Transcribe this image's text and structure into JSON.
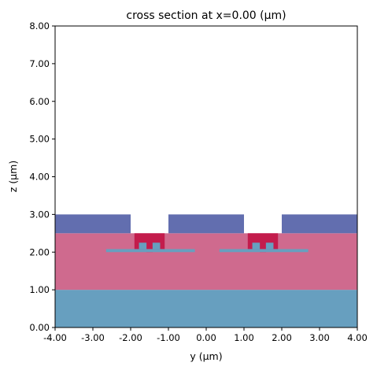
{
  "chart_data": {
    "type": "cross-section",
    "title": "cross section at x=0.00 (µm)",
    "xlabel": "y (µm)",
    "ylabel": "z (µm)",
    "xlim": [
      -4.0,
      4.0
    ],
    "ylim": [
      0.0,
      8.0
    ],
    "xticks": [
      -4.0,
      -3.0,
      -2.0,
      -1.0,
      0.0,
      1.0,
      2.0,
      3.0,
      4.0
    ],
    "xtick_labels": [
      "-4.00",
      "-3.00",
      "-2.00",
      "-1.00",
      "0.00",
      "1.00",
      "2.00",
      "3.00",
      "4.00"
    ],
    "yticks": [
      0.0,
      1.0,
      2.0,
      3.0,
      4.0,
      5.0,
      6.0,
      7.0,
      8.0
    ],
    "ytick_labels": [
      "0.00",
      "1.00",
      "2.00",
      "3.00",
      "4.00",
      "5.00",
      "6.00",
      "7.00",
      "8.00"
    ],
    "grid": false,
    "colors": {
      "substrate": "#679fbf",
      "cladding": "#cf6a8e",
      "top_layer": "#626eaf",
      "rib": "#c31c4c",
      "waveguide": "#679fbf"
    },
    "regions": [
      {
        "name": "substrate",
        "y": [
          -4.0,
          4.0
        ],
        "z": [
          0.0,
          1.0
        ],
        "color": "#679fbf"
      },
      {
        "name": "cladding",
        "y": [
          -4.0,
          4.0
        ],
        "z": [
          1.0,
          2.5
        ],
        "color": "#cf6a8e"
      },
      {
        "name": "top-layer-left",
        "y": [
          -4.0,
          -2.0
        ],
        "z": [
          2.5,
          3.0
        ],
        "color": "#626eaf"
      },
      {
        "name": "top-layer-middle",
        "y": [
          -1.0,
          1.0
        ],
        "z": [
          2.5,
          3.0
        ],
        "color": "#626eaf"
      },
      {
        "name": "top-layer-right",
        "y": [
          2.0,
          4.0
        ],
        "z": [
          2.5,
          3.0
        ],
        "color": "#626eaf"
      },
      {
        "name": "rib-left",
        "y": [
          -1.9,
          -1.1
        ],
        "z": [
          2.08,
          2.5
        ],
        "color": "#c31c4c"
      },
      {
        "name": "rib-left-stem",
        "y": [
          -1.58,
          -1.42
        ],
        "z": [
          2.0,
          2.08
        ],
        "color": "#c31c4c"
      },
      {
        "name": "rib-right",
        "y": [
          1.1,
          1.9
        ],
        "z": [
          2.08,
          2.5
        ],
        "color": "#c31c4c"
      },
      {
        "name": "rib-right-stem",
        "y": [
          1.42,
          1.58
        ],
        "z": [
          2.0,
          2.08
        ],
        "color": "#c31c4c"
      },
      {
        "name": "waveguide-left-slab",
        "y": [
          -2.65,
          -0.3
        ],
        "z": [
          2.0,
          2.08
        ],
        "color": "#679fbf"
      },
      {
        "name": "waveguide-left-post-1",
        "y": [
          -1.78,
          -1.58
        ],
        "z": [
          2.08,
          2.25
        ],
        "color": "#679fbf"
      },
      {
        "name": "waveguide-left-post-2",
        "y": [
          -1.42,
          -1.22
        ],
        "z": [
          2.08,
          2.25
        ],
        "color": "#679fbf"
      },
      {
        "name": "waveguide-right-slab",
        "y": [
          0.35,
          2.7
        ],
        "z": [
          2.0,
          2.08
        ],
        "color": "#679fbf"
      },
      {
        "name": "waveguide-right-post-1",
        "y": [
          1.22,
          1.42
        ],
        "z": [
          2.08,
          2.25
        ],
        "color": "#679fbf"
      },
      {
        "name": "waveguide-right-post-2",
        "y": [
          1.58,
          1.78
        ],
        "z": [
          2.08,
          2.25
        ],
        "color": "#679fbf"
      }
    ]
  }
}
